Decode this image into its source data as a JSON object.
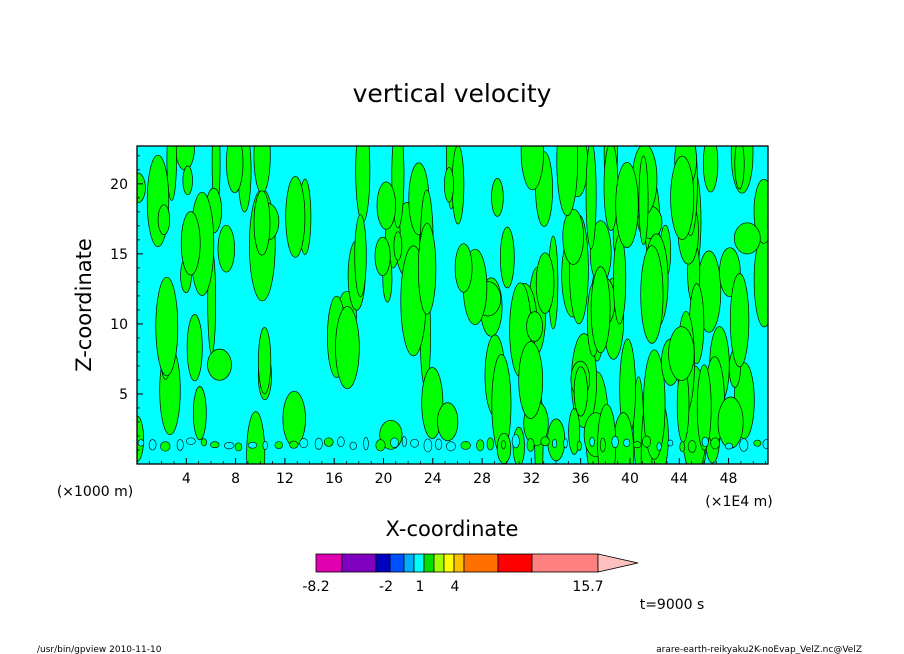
{
  "chart_data": {
    "type": "heatmap",
    "title": "vertical velocity",
    "xlabel": "X-coordinate",
    "ylabel": "Z-coordinate",
    "x_unit_left": "(×1000 m)",
    "x_unit_right": "(×1E4 m)",
    "x_ticks": [
      "4",
      "8",
      "12",
      "16",
      "20",
      "24",
      "28",
      "32",
      "36",
      "40",
      "44",
      "48"
    ],
    "y_ticks": [
      "5",
      "10",
      "15",
      "20"
    ],
    "xlim": [
      0,
      51.2
    ],
    "ylim": [
      0,
      22.7
    ],
    "levels": {
      "colors": [
        "#e000b0",
        "#8000c0",
        "#0000c0",
        "#0050ff",
        "#00b0ff",
        "#00ffff",
        "#00e000",
        "#a0ff00",
        "#ffff00",
        "#ffc000",
        "#ff7000",
        "#ff0000",
        "#ff8080",
        "#ffc0c0"
      ],
      "labels": [
        "-8.2",
        "-2",
        "1",
        "4",
        "15.7"
      ]
    },
    "field_colors": {
      "negative": "#00ffff",
      "positive": "#00ff00",
      "contour": "#000000"
    },
    "time_label": "t=9000 s"
  },
  "footer": {
    "left": "/usr/bin/gpview   2010-11-10",
    "right": "arare-earth-reikyaku2K-noEvap_VelZ.nc@VelZ"
  }
}
